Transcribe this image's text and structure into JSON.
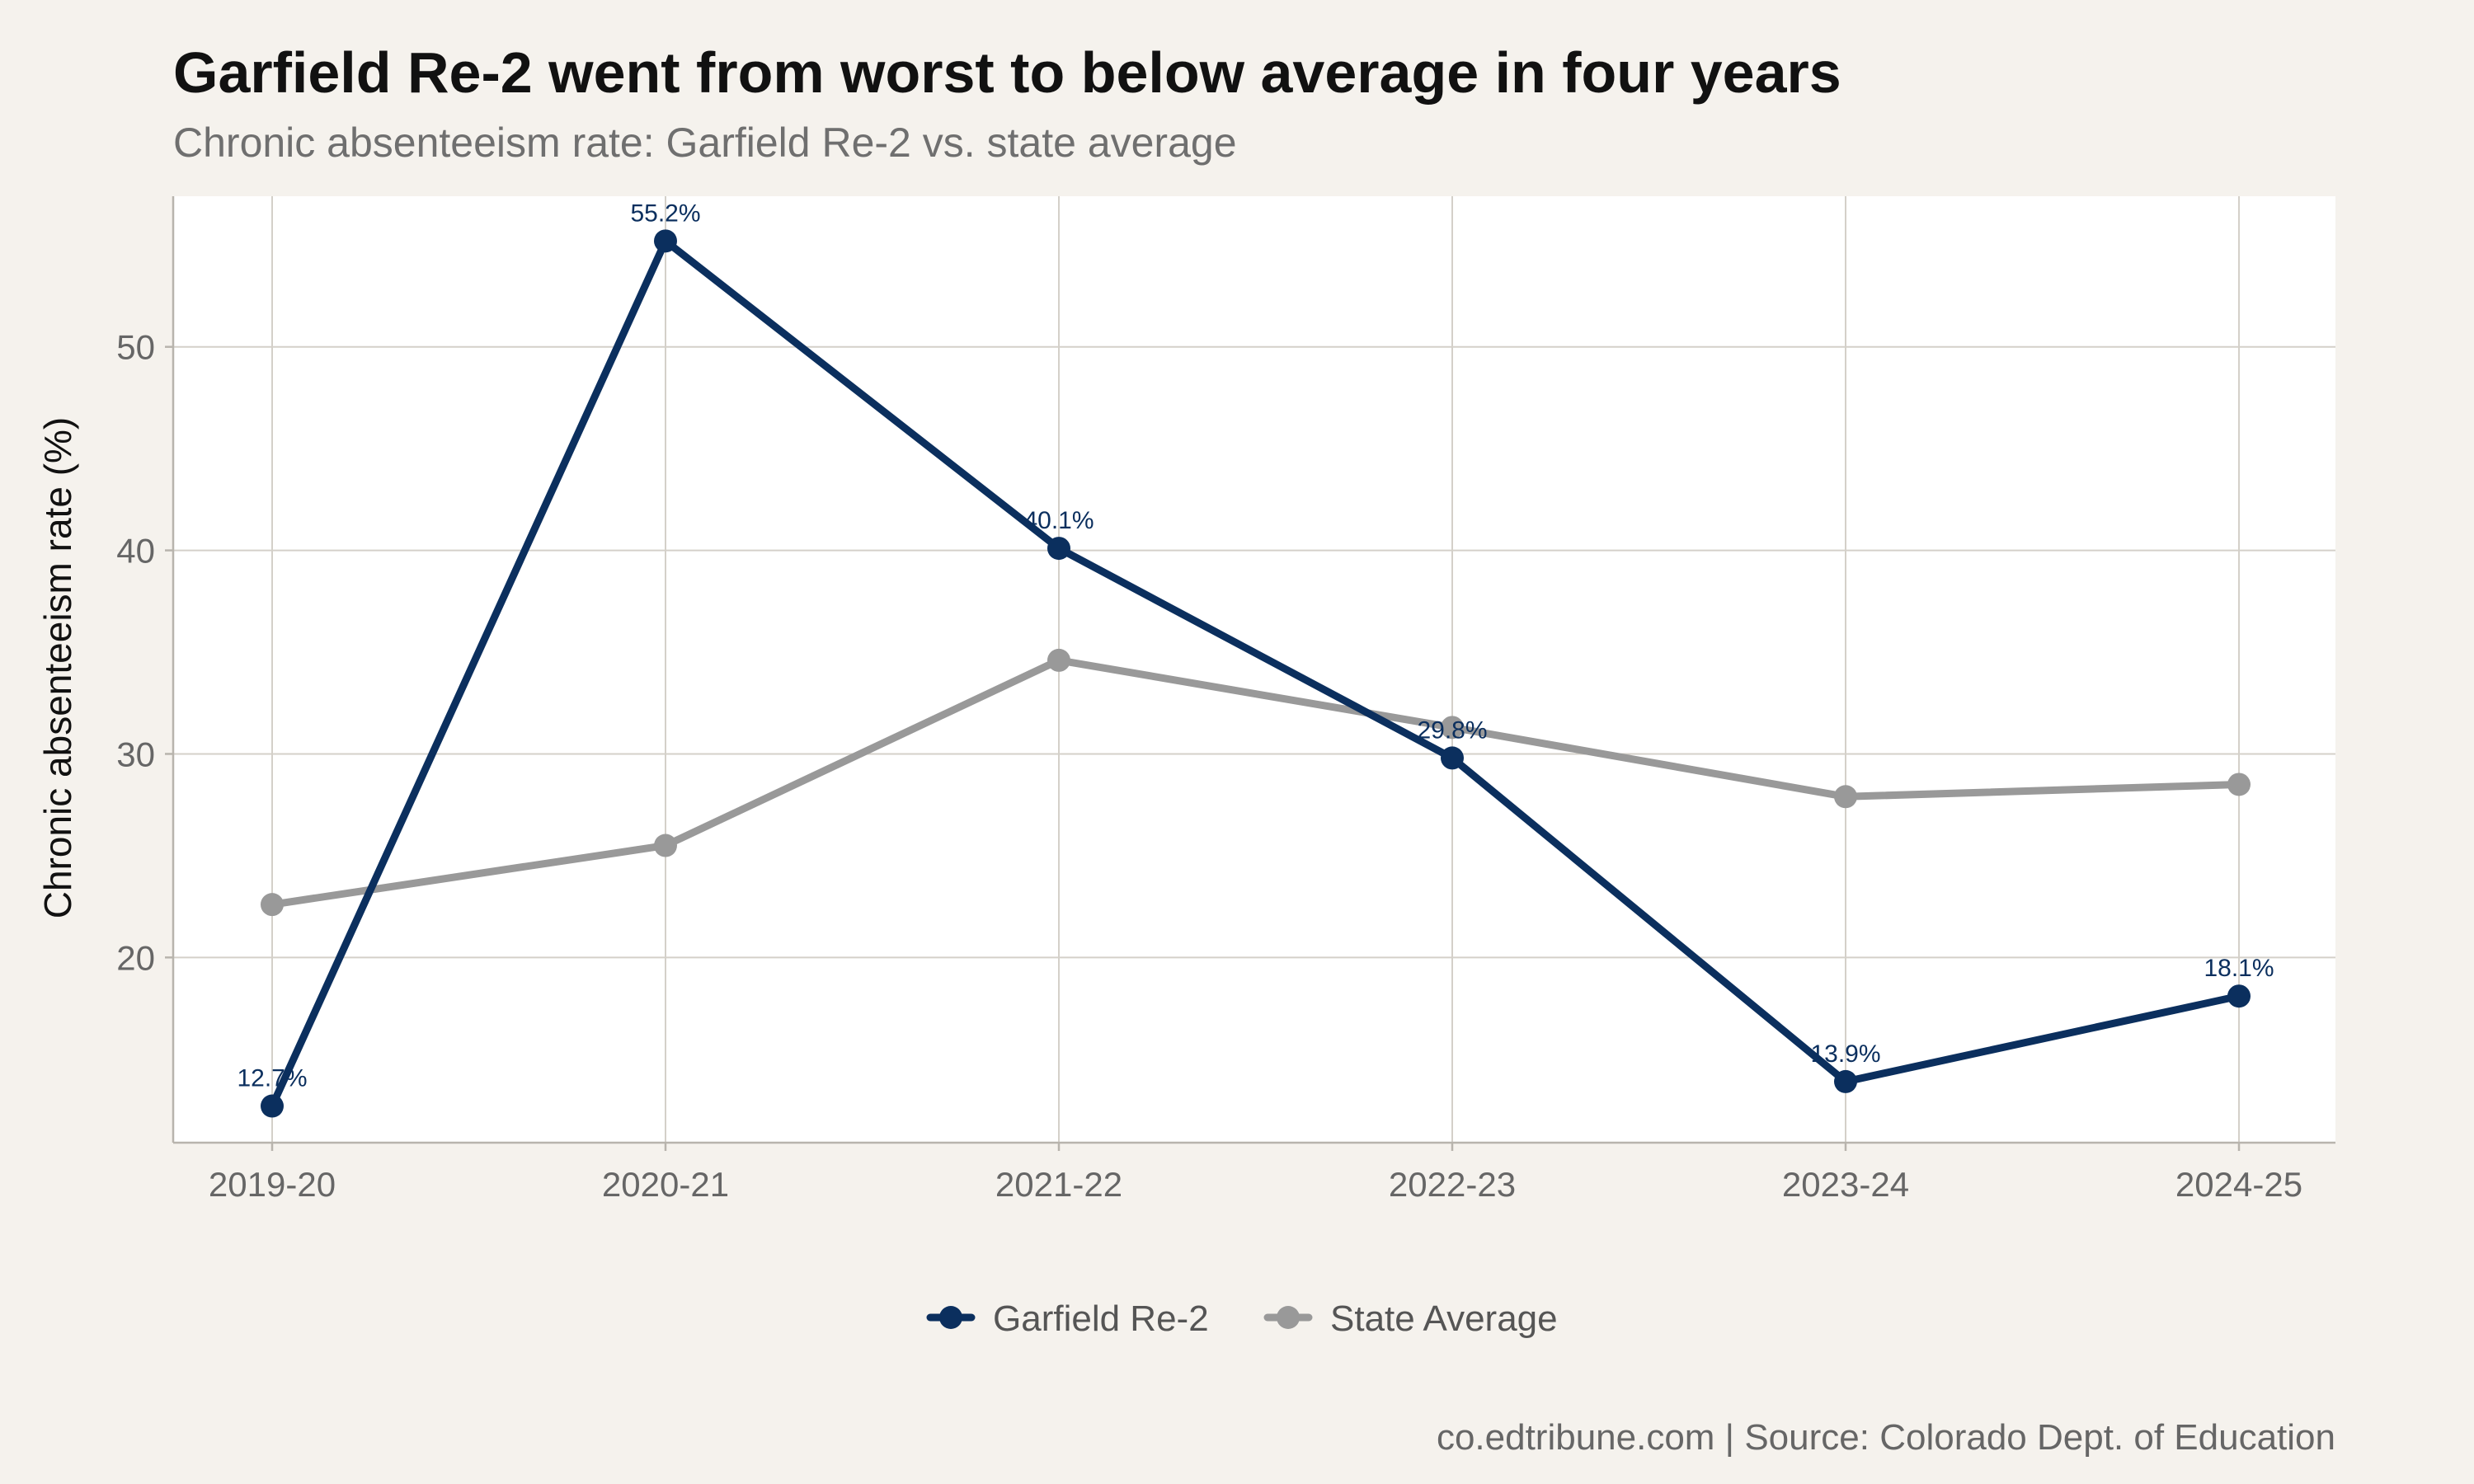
{
  "chart_data": {
    "type": "line",
    "title": "Garfield Re-2 went from worst to below average in four years",
    "subtitle": "Chronic absenteeism rate: Garfield Re-2 vs. state average",
    "xlabel": "",
    "ylabel": "Chronic absenteeism rate (%)",
    "categories": [
      "2019-20",
      "2020-21",
      "2021-22",
      "2022-23",
      "2023-24",
      "2024-25"
    ],
    "ylim": [
      10.9,
      57.4
    ],
    "yticks": [
      20,
      30,
      40,
      50
    ],
    "grid": true,
    "legend_position": "bottom",
    "series": [
      {
        "name": "Garfield Re-2",
        "color": "#0b2f5e",
        "values": [
          12.7,
          55.2,
          40.1,
          29.8,
          13.9,
          18.1
        ],
        "labels": [
          "12.7%",
          "55.2%",
          "40.1%",
          "29.8%",
          "13.9%",
          "18.1%"
        ]
      },
      {
        "name": "State Average",
        "color": "#999999",
        "values": [
          22.6,
          25.5,
          34.6,
          31.3,
          27.9,
          28.5
        ]
      }
    ],
    "caption": "co.edtribune.com | Source: Colorado Dept. of Education"
  }
}
